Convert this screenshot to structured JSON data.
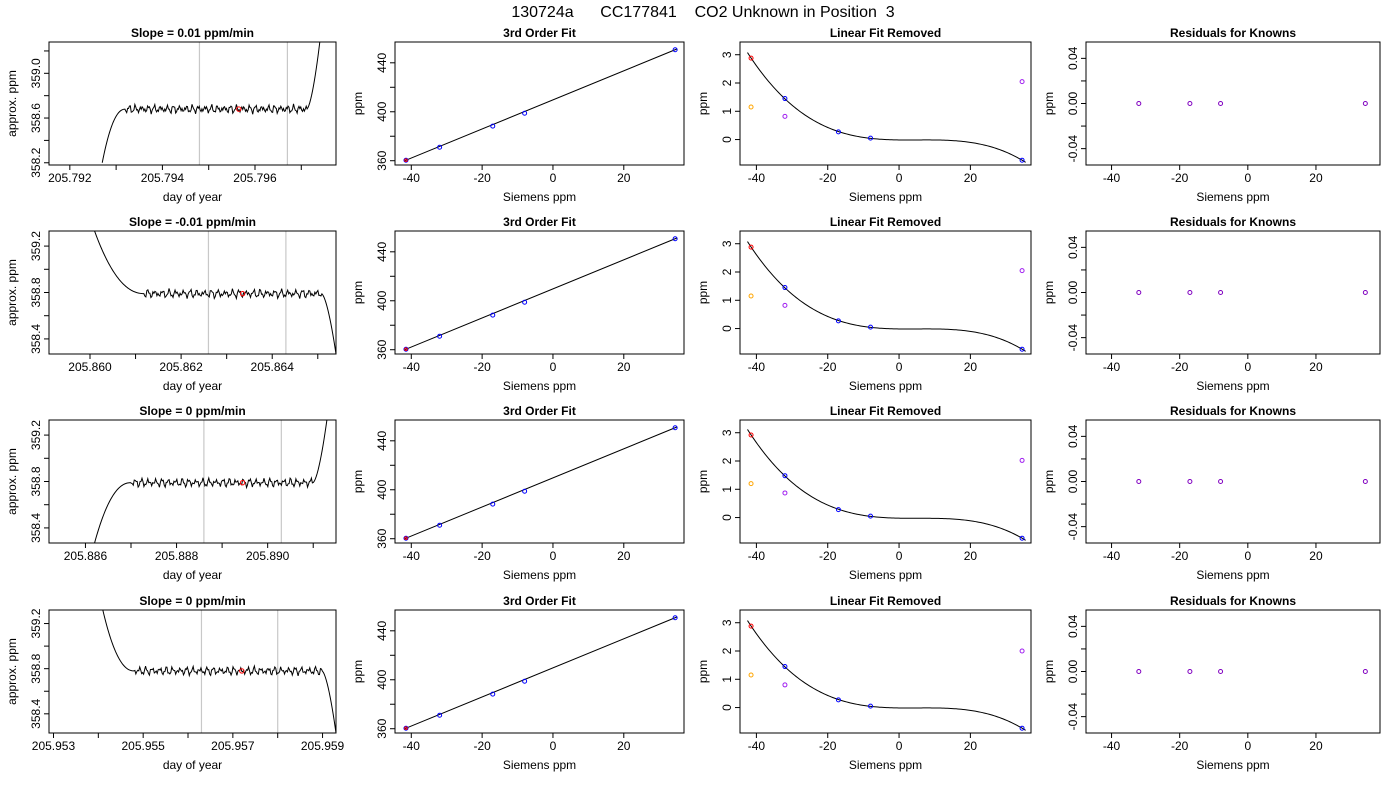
{
  "figure": {
    "title": "130724a      CC177841    CO2 Unknown in Position  3"
  },
  "colors": {
    "axis": "#000000",
    "trace": "#000000",
    "window_line": "#c8c8c8",
    "known_point": "#0000ff",
    "unknown_point": "#ff0000",
    "orange_point": "#ffa500",
    "violet_point": "#a020f0",
    "residual_point": "#8000c0"
  },
  "chart_data": [
    {
      "type": "line",
      "panel": "trace",
      "row": 0,
      "title": "Slope =  0.01  ppm/min",
      "xlabel": "day of year",
      "ylabel": "approx. ppm",
      "xlim": [
        205.79155,
        205.79775
      ],
      "ylim": [
        358.18,
        359.28
      ],
      "xticks": [
        205.792,
        205.794,
        205.796
      ],
      "xtick_labels": [
        "205.792",
        "205.794",
        "205.796"
      ],
      "xminor": [
        205.793,
        205.795,
        205.797
      ],
      "yticks": [
        358.2,
        358.6,
        359.0
      ],
      "ytick_labels": [
        "358.2",
        "358.6",
        "359.0"
      ],
      "yminor": [
        358.4,
        358.8,
        359.2
      ],
      "window": [
        205.7948,
        205.7967
      ],
      "trace": {
        "x0": 205.7927,
        "x1": 205.7974,
        "rise_end": 205.7932,
        "level": 358.68,
        "start": 358.2,
        "end": 359.28
      },
      "unknown_point": {
        "x": 205.79565,
        "y": 358.68
      },
      "grid": false
    },
    {
      "type": "scatter",
      "panel": "fit",
      "row": 0,
      "title": "3rd Order Fit",
      "xlabel": "Siemens ppm",
      "ylabel": "ppm",
      "xlim": [
        -44.6,
        37.0
      ],
      "ylim": [
        356.5,
        457.0
      ],
      "xticks": [
        -40,
        -20,
        0,
        20
      ],
      "xtick_labels": [
        "-40",
        "-20",
        "0",
        "20"
      ],
      "yticks": [
        360,
        400,
        440
      ],
      "ytick_labels": [
        "360",
        "400",
        "440"
      ],
      "yminor": [
        380,
        420
      ],
      "known_x": [
        -41.5,
        -32.0,
        -17.0,
        -8.0,
        34.5
      ],
      "known_y": [
        360.4,
        371.0,
        388.3,
        398.8,
        450.7
      ],
      "line": [
        [
          -42.0,
          359.8
        ],
        [
          35.0,
          451.3
        ]
      ],
      "grid": false
    },
    {
      "type": "scatter",
      "panel": "linear_removed",
      "row": 0,
      "title": "Linear Fit Removed",
      "xlabel": "Siemens ppm",
      "ylabel": "ppm",
      "xlim": [
        -44.6,
        37.0
      ],
      "ylim": [
        -0.9,
        3.45
      ],
      "xticks": [
        -40,
        -20,
        0,
        20
      ],
      "xtick_labels": [
        "-40",
        "-20",
        "0",
        "20"
      ],
      "yticks": [
        0,
        1,
        2,
        3
      ],
      "ytick_labels": [
        "0",
        "1",
        "2",
        "3"
      ],
      "known_x": [
        -32.0,
        -17.0,
        -8.0,
        34.5
      ],
      "known_y": [
        1.45,
        0.27,
        0.05,
        -0.73
      ],
      "unknown_point": {
        "x": -41.5,
        "y": 2.88
      },
      "orange_point": {
        "x": -41.5,
        "y": 1.15
      },
      "violet_points": {
        "x": [
          -32.0,
          34.5
        ],
        "y": [
          0.82,
          2.05
        ]
      },
      "grid": false
    },
    {
      "type": "scatter",
      "panel": "residuals",
      "row": 0,
      "title": "Residuals for Knowns",
      "xlabel": "Siemens ppm",
      "ylabel": "ppm",
      "xlim": [
        -47.5,
        38.8
      ],
      "ylim": [
        -0.0545,
        0.0545
      ],
      "xticks": [
        -40,
        -20,
        0,
        20
      ],
      "xtick_labels": [
        "-40",
        "-20",
        "0",
        "20"
      ],
      "yticks": [
        -0.04,
        0.0,
        0.04
      ],
      "ytick_labels": [
        "-0.04",
        "0.00",
        "0.04"
      ],
      "yminor": [
        -0.02,
        0.02
      ],
      "x": [
        -32.0,
        -17.0,
        -8.0,
        34.5
      ],
      "y": [
        0.0,
        0.0,
        0.0,
        0.0
      ],
      "grid": false
    },
    {
      "type": "line",
      "panel": "trace",
      "row": 1,
      "title": "Slope =  -0.01  ppm/min",
      "xlabel": "day of year",
      "ylabel": "approx. ppm",
      "xlim": [
        205.8591,
        205.8654
      ],
      "ylim": [
        358.27,
        359.33
      ],
      "xticks": [
        205.86,
        205.862,
        205.864
      ],
      "xtick_labels": [
        "205.860",
        "205.862",
        "205.864"
      ],
      "xminor": [
        205.861,
        205.863,
        205.865
      ],
      "yticks": [
        358.4,
        358.8,
        359.2
      ],
      "ytick_labels": [
        "358.4",
        "358.8",
        "359.2"
      ],
      "yminor": [
        358.6,
        359.0
      ],
      "window": [
        205.8626,
        205.8643
      ],
      "trace": {
        "x0": 205.8601,
        "x1": 205.8654,
        "rise_end": 205.8612,
        "level": 358.79,
        "start": 359.33,
        "end": 358.27
      },
      "unknown_point": {
        "x": 205.86335,
        "y": 358.79
      },
      "grid": false
    },
    {
      "type": "scatter",
      "panel": "fit",
      "row": 1,
      "title": "3rd Order Fit",
      "xlabel": "Siemens ppm",
      "ylabel": "ppm",
      "xlim": [
        -44.6,
        37.0
      ],
      "ylim": [
        356.5,
        457.0
      ],
      "xticks": [
        -40,
        -20,
        0,
        20
      ],
      "xtick_labels": [
        "-40",
        "-20",
        "0",
        "20"
      ],
      "yticks": [
        360,
        400,
        440
      ],
      "ytick_labels": [
        "360",
        "400",
        "440"
      ],
      "yminor": [
        380,
        420
      ],
      "known_x": [
        -41.5,
        -32.0,
        -17.0,
        -8.0,
        34.5
      ],
      "known_y": [
        360.4,
        371.0,
        388.3,
        398.8,
        450.7
      ],
      "line": [
        [
          -42.0,
          359.8
        ],
        [
          35.0,
          451.3
        ]
      ],
      "grid": false
    },
    {
      "type": "scatter",
      "panel": "linear_removed",
      "row": 1,
      "title": "Linear Fit Removed",
      "xlabel": "Siemens ppm",
      "ylabel": "ppm",
      "xlim": [
        -44.6,
        37.0
      ],
      "ylim": [
        -0.9,
        3.45
      ],
      "xticks": [
        -40,
        -20,
        0,
        20
      ],
      "xtick_labels": [
        "-40",
        "-20",
        "0",
        "20"
      ],
      "yticks": [
        0,
        1,
        2,
        3
      ],
      "ytick_labels": [
        "0",
        "1",
        "2",
        "3"
      ],
      "known_x": [
        -32.0,
        -17.0,
        -8.0,
        34.5
      ],
      "known_y": [
        1.45,
        0.27,
        0.05,
        -0.73
      ],
      "unknown_point": {
        "x": -41.5,
        "y": 2.88
      },
      "orange_point": {
        "x": -41.5,
        "y": 1.15
      },
      "violet_points": {
        "x": [
          -32.0,
          34.5
        ],
        "y": [
          0.82,
          2.05
        ]
      },
      "grid": false
    },
    {
      "type": "scatter",
      "panel": "residuals",
      "row": 1,
      "title": "Residuals for Knowns",
      "xlabel": "Siemens ppm",
      "ylabel": "ppm",
      "xlim": [
        -47.5,
        38.8
      ],
      "ylim": [
        -0.0545,
        0.0545
      ],
      "xticks": [
        -40,
        -20,
        0,
        20
      ],
      "xtick_labels": [
        "-40",
        "-20",
        "0",
        "20"
      ],
      "yticks": [
        -0.04,
        0.0,
        0.04
      ],
      "ytick_labels": [
        "-0.04",
        "0.00",
        "0.04"
      ],
      "yminor": [
        -0.02,
        0.02
      ],
      "x": [
        -32.0,
        -17.0,
        -8.0,
        34.5
      ],
      "y": [
        0.0,
        0.0,
        0.0,
        0.0
      ],
      "grid": false
    },
    {
      "type": "line",
      "panel": "trace",
      "row": 2,
      "title": "Slope =  0  ppm/min",
      "xlabel": "day of year",
      "ylabel": "approx. ppm",
      "xlim": [
        205.8852,
        205.8915
      ],
      "ylim": [
        358.27,
        359.33
      ],
      "xticks": [
        205.886,
        205.888,
        205.89
      ],
      "xtick_labels": [
        "205.886",
        "205.888",
        "205.890"
      ],
      "xminor": [
        205.887,
        205.889,
        205.891
      ],
      "yticks": [
        358.4,
        358.8,
        359.2
      ],
      "ytick_labels": [
        "358.4",
        "358.8",
        "359.2"
      ],
      "yminor": [
        358.6,
        359.0
      ],
      "window": [
        205.8886,
        205.8903
      ],
      "trace": {
        "x0": 205.8862,
        "x1": 205.8913,
        "rise_end": 205.887,
        "level": 358.79,
        "start": 358.27,
        "end": 359.33
      },
      "unknown_point": {
        "x": 205.88945,
        "y": 358.79
      },
      "grid": false
    },
    {
      "type": "scatter",
      "panel": "fit",
      "row": 2,
      "title": "3rd Order Fit",
      "xlabel": "Siemens ppm",
      "ylabel": "ppm",
      "xlim": [
        -44.6,
        37.0
      ],
      "ylim": [
        356.5,
        457.0
      ],
      "xticks": [
        -40,
        -20,
        0,
        20
      ],
      "xtick_labels": [
        "-40",
        "-20",
        "0",
        "20"
      ],
      "yticks": [
        360,
        400,
        440
      ],
      "ytick_labels": [
        "360",
        "400",
        "440"
      ],
      "yminor": [
        380,
        420
      ],
      "known_x": [
        -41.5,
        -32.0,
        -17.0,
        -8.0,
        34.5
      ],
      "known_y": [
        360.4,
        371.0,
        388.3,
        398.8,
        450.7
      ],
      "line": [
        [
          -42.0,
          359.8
        ],
        [
          35.0,
          451.3
        ]
      ],
      "grid": false
    },
    {
      "type": "scatter",
      "panel": "linear_removed",
      "row": 2,
      "title": "Linear Fit Removed",
      "xlabel": "Siemens ppm",
      "ylabel": "ppm",
      "xlim": [
        -44.6,
        37.0
      ],
      "ylim": [
        -0.9,
        3.45
      ],
      "xticks": [
        -40,
        -20,
        0,
        20
      ],
      "xtick_labels": [
        "-40",
        "-20",
        "0",
        "20"
      ],
      "yticks": [
        0,
        1,
        2,
        3
      ],
      "ytick_labels": [
        "0",
        "1",
        "2",
        "3"
      ],
      "known_x": [
        -32.0,
        -17.0,
        -8.0,
        34.5
      ],
      "known_y": [
        1.48,
        0.28,
        0.05,
        -0.73
      ],
      "unknown_point": {
        "x": -41.5,
        "y": 2.92
      },
      "orange_point": {
        "x": -41.5,
        "y": 1.2
      },
      "violet_points": {
        "x": [
          -32.0,
          34.5
        ],
        "y": [
          0.87,
          2.02
        ]
      },
      "grid": false
    },
    {
      "type": "scatter",
      "panel": "residuals",
      "row": 2,
      "title": "Residuals for Knowns",
      "xlabel": "Siemens ppm",
      "ylabel": "ppm",
      "xlim": [
        -47.5,
        38.8
      ],
      "ylim": [
        -0.0545,
        0.0545
      ],
      "xticks": [
        -40,
        -20,
        0,
        20
      ],
      "xtick_labels": [
        "-40",
        "-20",
        "0",
        "20"
      ],
      "yticks": [
        -0.04,
        0.0,
        0.04
      ],
      "ytick_labels": [
        "-0.04",
        "0.00",
        "0.04"
      ],
      "yminor": [
        -0.02,
        0.02
      ],
      "x": [
        -32.0,
        -17.0,
        -8.0,
        34.5
      ],
      "y": [
        0.0,
        0.0,
        0.0,
        0.0
      ],
      "grid": false
    },
    {
      "type": "line",
      "panel": "trace",
      "row": 3,
      "title": "Slope =  0  ppm/min",
      "xlabel": "day of year",
      "ylabel": "approx. ppm",
      "xlim": [
        205.9529,
        205.9593
      ],
      "ylim": [
        358.23,
        359.32
      ],
      "xticks": [
        205.953,
        205.955,
        205.957,
        205.959
      ],
      "xtick_labels": [
        "205.953",
        "205.955",
        "205.957",
        "205.959"
      ],
      "xminor": [
        205.954,
        205.956,
        205.958
      ],
      "yticks": [
        358.4,
        358.8,
        359.2
      ],
      "ytick_labels": [
        "358.4",
        "358.8",
        "359.2"
      ],
      "yminor": [
        358.6,
        359.0
      ],
      "window": [
        205.9563,
        205.958
      ],
      "trace": {
        "x0": 205.9541,
        "x1": 205.9593,
        "rise_end": 205.9548,
        "level": 358.78,
        "start": 359.32,
        "end": 358.23
      },
      "unknown_point": {
        "x": 205.9572,
        "y": 358.78
      },
      "grid": false
    },
    {
      "type": "scatter",
      "panel": "fit",
      "row": 3,
      "title": "3rd Order Fit",
      "xlabel": "Siemens ppm",
      "ylabel": "ppm",
      "xlim": [
        -44.6,
        37.0
      ],
      "ylim": [
        356.5,
        457.0
      ],
      "xticks": [
        -40,
        -20,
        0,
        20
      ],
      "xtick_labels": [
        "-40",
        "-20",
        "0",
        "20"
      ],
      "yticks": [
        360,
        400,
        440
      ],
      "ytick_labels": [
        "360",
        "400",
        "440"
      ],
      "yminor": [
        380,
        420
      ],
      "known_x": [
        -41.5,
        -32.0,
        -17.0,
        -8.0,
        34.5
      ],
      "known_y": [
        360.4,
        371.0,
        388.3,
        398.8,
        450.7
      ],
      "line": [
        [
          -42.0,
          359.8
        ],
        [
          35.0,
          451.3
        ]
      ],
      "grid": false
    },
    {
      "type": "scatter",
      "panel": "linear_removed",
      "row": 3,
      "title": "Linear Fit Removed",
      "xlabel": "Siemens ppm",
      "ylabel": "ppm",
      "xlim": [
        -44.6,
        37.0
      ],
      "ylim": [
        -0.9,
        3.45
      ],
      "xticks": [
        -40,
        -20,
        0,
        20
      ],
      "xtick_labels": [
        "-40",
        "-20",
        "0",
        "20"
      ],
      "yticks": [
        0,
        1,
        2,
        3
      ],
      "ytick_labels": [
        "0",
        "1",
        "2",
        "3"
      ],
      "known_x": [
        -32.0,
        -17.0,
        -8.0,
        34.5
      ],
      "known_y": [
        1.45,
        0.27,
        0.05,
        -0.73
      ],
      "unknown_point": {
        "x": -41.5,
        "y": 2.88
      },
      "orange_point": {
        "x": -41.5,
        "y": 1.15
      },
      "violet_points": {
        "x": [
          -32.0,
          34.5
        ],
        "y": [
          0.8,
          2.0
        ]
      },
      "grid": false
    },
    {
      "type": "scatter",
      "panel": "residuals",
      "row": 3,
      "title": "Residuals for Knowns",
      "xlabel": "Siemens ppm",
      "ylabel": "ppm",
      "xlim": [
        -47.5,
        38.8
      ],
      "ylim": [
        -0.0545,
        0.0545
      ],
      "xticks": [
        -40,
        -20,
        0,
        20
      ],
      "xtick_labels": [
        "-40",
        "-20",
        "0",
        "20"
      ],
      "yticks": [
        -0.04,
        0.0,
        0.04
      ],
      "ytick_labels": [
        "-0.04",
        "0.00",
        "0.04"
      ],
      "yminor": [
        -0.02,
        0.02
      ],
      "x": [
        -32.0,
        -17.0,
        -8.0,
        34.5
      ],
      "y": [
        0.0,
        0.0,
        0.0,
        0.0
      ],
      "grid": false
    }
  ]
}
